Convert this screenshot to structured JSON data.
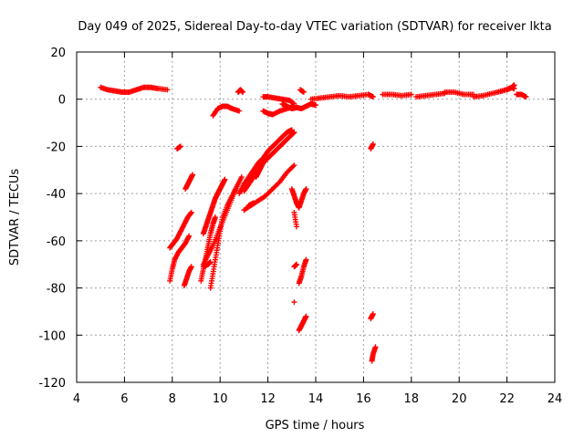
{
  "chart_data": {
    "type": "scatter",
    "title": "Day 049 of 2025, Sidereal Day-to-day VTEC variation (SDTVAR) for receiver lkta",
    "xlabel": "GPS time / hours",
    "ylabel": "SDTVAR / TECUs",
    "xlim": [
      4,
      24
    ],
    "ylim": [
      -120,
      20
    ],
    "xticks": [
      "4",
      "6",
      "8",
      "10",
      "12",
      "14",
      "16",
      "18",
      "20",
      "22",
      "24"
    ],
    "yticks": [
      "20",
      "0",
      "-20",
      "-40",
      "-60",
      "-80",
      "-100",
      "-120"
    ],
    "grid": true,
    "marker": "+",
    "color": "#ff0000",
    "series": [
      {
        "points": [
          [
            5.0,
            5
          ],
          [
            5.3,
            4
          ],
          [
            5.6,
            3.5
          ],
          [
            5.9,
            3
          ],
          [
            6.2,
            3
          ],
          [
            6.5,
            4
          ],
          [
            6.8,
            5
          ],
          [
            7.1,
            5
          ],
          [
            7.4,
            4.5
          ],
          [
            7.8,
            4
          ]
        ]
      },
      {
        "points": [
          [
            8.2,
            -21
          ],
          [
            8.35,
            -20
          ]
        ]
      },
      {
        "points": [
          [
            7.9,
            -77
          ],
          [
            8.0,
            -72
          ],
          [
            8.1,
            -68
          ],
          [
            8.25,
            -65
          ],
          [
            8.4,
            -63
          ],
          [
            8.55,
            -61
          ],
          [
            8.7,
            -58
          ]
        ]
      },
      {
        "points": [
          [
            7.9,
            -63
          ],
          [
            8.05,
            -61
          ],
          [
            8.2,
            -59
          ],
          [
            8.35,
            -56
          ],
          [
            8.5,
            -53
          ],
          [
            8.65,
            -50
          ],
          [
            8.8,
            -48
          ]
        ]
      },
      {
        "points": [
          [
            8.5,
            -79
          ],
          [
            8.6,
            -76
          ],
          [
            8.7,
            -73
          ],
          [
            8.8,
            -71
          ]
        ]
      },
      {
        "points": [
          [
            8.55,
            -38
          ],
          [
            8.65,
            -36
          ],
          [
            8.75,
            -34
          ],
          [
            8.85,
            -32
          ]
        ]
      },
      {
        "points": [
          [
            9.2,
            -77
          ],
          [
            9.3,
            -72
          ],
          [
            9.4,
            -67
          ],
          [
            9.5,
            -62
          ],
          [
            9.6,
            -57
          ],
          [
            9.7,
            -53
          ],
          [
            9.8,
            -50
          ]
        ]
      },
      {
        "points": [
          [
            9.3,
            -57
          ],
          [
            9.4,
            -54
          ],
          [
            9.5,
            -51
          ],
          [
            9.6,
            -48
          ],
          [
            9.7,
            -45
          ],
          [
            9.8,
            -42
          ],
          [
            9.9,
            -40
          ],
          [
            10.0,
            -38
          ],
          [
            10.1,
            -36
          ],
          [
            10.2,
            -34
          ]
        ]
      },
      {
        "points": [
          [
            9.3,
            -70
          ],
          [
            9.5,
            -66
          ],
          [
            9.7,
            -62
          ],
          [
            9.9,
            -57
          ],
          [
            10.1,
            -52
          ],
          [
            10.3,
            -47
          ],
          [
            10.5,
            -42
          ],
          [
            10.7,
            -37
          ],
          [
            10.9,
            -33
          ]
        ]
      },
      {
        "points": [
          [
            9.6,
            -80
          ],
          [
            9.7,
            -74
          ],
          [
            9.8,
            -68
          ],
          [
            9.9,
            -62
          ],
          [
            10.0,
            -56
          ],
          [
            10.1,
            -50
          ],
          [
            10.3,
            -45
          ],
          [
            10.5,
            -41
          ],
          [
            10.7,
            -37
          ]
        ]
      },
      {
        "points": [
          [
            9.3,
            -71
          ],
          [
            9.5,
            -70
          ],
          [
            9.6,
            -69
          ]
        ]
      },
      {
        "points": [
          [
            9.7,
            -7
          ],
          [
            9.9,
            -4
          ],
          [
            10.1,
            -3
          ],
          [
            10.3,
            -3
          ],
          [
            10.5,
            -4
          ],
          [
            10.8,
            -5
          ]
        ]
      },
      {
        "points": [
          [
            10.75,
            3
          ],
          [
            10.85,
            4
          ],
          [
            10.95,
            3
          ]
        ]
      },
      {
        "points": [
          [
            10.8,
            -40
          ],
          [
            11.0,
            -36
          ],
          [
            11.2,
            -33
          ],
          [
            11.4,
            -30
          ],
          [
            11.6,
            -27
          ],
          [
            11.8,
            -25
          ],
          [
            12.0,
            -22
          ],
          [
            12.2,
            -20
          ],
          [
            12.4,
            -18
          ],
          [
            12.6,
            -16
          ],
          [
            12.8,
            -14
          ],
          [
            13.0,
            -13
          ]
        ]
      },
      {
        "points": [
          [
            11.0,
            -39
          ],
          [
            11.2,
            -36
          ],
          [
            11.4,
            -33
          ],
          [
            11.6,
            -30
          ],
          [
            11.8,
            -27
          ],
          [
            12.0,
            -25
          ],
          [
            12.2,
            -23
          ],
          [
            12.4,
            -21
          ],
          [
            12.6,
            -19
          ],
          [
            12.8,
            -17
          ],
          [
            13.0,
            -15
          ],
          [
            13.1,
            -14
          ]
        ]
      },
      {
        "points": [
          [
            11.5,
            -33
          ],
          [
            11.6,
            -31
          ],
          [
            11.7,
            -29
          ],
          [
            11.8,
            -27
          ],
          [
            11.9,
            -25
          ]
        ]
      },
      {
        "points": [
          [
            11.0,
            -47
          ],
          [
            11.3,
            -45
          ],
          [
            11.6,
            -43
          ],
          [
            11.9,
            -41
          ],
          [
            12.2,
            -38
          ],
          [
            12.5,
            -35
          ],
          [
            12.8,
            -31
          ],
          [
            13.1,
            -28
          ]
        ]
      },
      {
        "points": [
          [
            11.2,
            -45
          ],
          [
            11.4,
            -44
          ]
        ]
      },
      {
        "points": [
          [
            11.8,
            -5
          ],
          [
            12.0,
            -6
          ],
          [
            12.2,
            -6.5
          ],
          [
            12.5,
            -5
          ],
          [
            12.8,
            -4
          ],
          [
            13.1,
            -3
          ]
        ]
      },
      {
        "points": [
          [
            11.8,
            1
          ],
          [
            12.0,
            1
          ],
          [
            12.3,
            0.5
          ],
          [
            12.6,
            0
          ],
          [
            12.9,
            -0.5
          ],
          [
            13.1,
            -2
          ]
        ]
      },
      {
        "points": [
          [
            12.6,
            -2
          ],
          [
            12.8,
            -3
          ],
          [
            13.0,
            -4
          ],
          [
            13.2,
            -3.5
          ],
          [
            13.4,
            -4
          ],
          [
            13.6,
            -3
          ],
          [
            13.8,
            -2
          ],
          [
            14.0,
            -2.5
          ]
        ]
      },
      {
        "points": [
          [
            13.35,
            4
          ],
          [
            13.5,
            3
          ]
        ]
      },
      {
        "points": [
          [
            13.0,
            -38
          ],
          [
            13.1,
            -41
          ],
          [
            13.2,
            -44
          ],
          [
            13.3,
            -46
          ],
          [
            13.4,
            -43
          ],
          [
            13.5,
            -40
          ],
          [
            13.6,
            -38
          ]
        ]
      },
      {
        "points": [
          [
            13.1,
            -48
          ],
          [
            13.2,
            -54
          ]
        ]
      },
      {
        "points": [
          [
            13.1,
            -71
          ],
          [
            13.2,
            -70
          ]
        ]
      },
      {
        "points": [
          [
            13.3,
            -78
          ],
          [
            13.4,
            -75
          ],
          [
            13.5,
            -71
          ],
          [
            13.6,
            -68
          ]
        ]
      },
      {
        "points": [
          [
            13.1,
            -86
          ]
        ]
      },
      {
        "points": [
          [
            13.3,
            -98
          ],
          [
            13.4,
            -96
          ],
          [
            13.5,
            -94
          ],
          [
            13.6,
            -92
          ]
        ]
      },
      {
        "points": [
          [
            13.8,
            0
          ],
          [
            14.2,
            0.5
          ],
          [
            14.6,
            1
          ],
          [
            15.0,
            1.5
          ],
          [
            15.4,
            1
          ],
          [
            15.8,
            1.5
          ],
          [
            16.2,
            2
          ],
          [
            16.4,
            1
          ]
        ]
      },
      {
        "points": [
          [
            16.3,
            -21
          ],
          [
            16.4,
            -19
          ]
        ]
      },
      {
        "points": [
          [
            16.3,
            -93
          ],
          [
            16.4,
            -91
          ]
        ]
      },
      {
        "points": [
          [
            16.35,
            -111
          ],
          [
            16.4,
            -108
          ],
          [
            16.5,
            -105
          ]
        ]
      },
      {
        "points": [
          [
            16.8,
            2
          ],
          [
            17.2,
            2
          ],
          [
            17.6,
            1.5
          ],
          [
            18.0,
            2
          ]
        ]
      },
      {
        "points": [
          [
            18.2,
            1
          ],
          [
            18.6,
            1.5
          ],
          [
            19.0,
            2
          ],
          [
            19.4,
            2.5
          ]
        ]
      },
      {
        "points": [
          [
            19.4,
            3
          ],
          [
            19.8,
            3
          ],
          [
            20.2,
            2
          ],
          [
            20.6,
            2
          ]
        ]
      },
      {
        "points": [
          [
            20.6,
            1
          ],
          [
            21.0,
            1.5
          ],
          [
            21.4,
            2.5
          ],
          [
            21.8,
            3.5
          ],
          [
            22.2,
            5
          ],
          [
            22.3,
            4.5
          ]
        ]
      },
      {
        "points": [
          [
            21.6,
            3
          ],
          [
            22.0,
            4
          ],
          [
            22.2,
            5
          ],
          [
            22.3,
            6
          ]
        ]
      },
      {
        "points": [
          [
            22.4,
            2
          ],
          [
            22.6,
            2
          ],
          [
            22.8,
            1
          ]
        ]
      }
    ]
  }
}
